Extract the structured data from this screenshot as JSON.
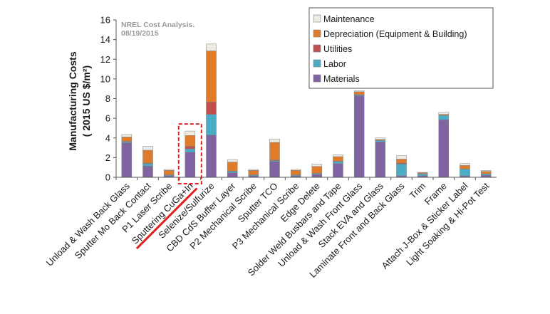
{
  "chart_data": {
    "type": "bar",
    "stacked": true,
    "title": "",
    "xlabel": "",
    "ylabel": "Manufacturing Costs ( 2015 US $/m²)",
    "ylabel_line1": "Manufacturing Costs",
    "ylabel_line2": "( 2015 US $/m²)",
    "ylim": [
      0,
      16
    ],
    "yticks": [
      "0",
      "2",
      "4",
      "6",
      "8",
      "10",
      "12",
      "14",
      "16"
    ],
    "grid": false,
    "legend_position": "top-right",
    "annotation": {
      "line1": "NREL Cost Analysis.",
      "line2": "08/19/2015"
    },
    "highlighted_category": "Sputtering CuGa+In",
    "categories": [
      "Unload & Wash Back Glass",
      "Sputter Mo Back Contact",
      "P1 Laser Scribe",
      "Sputtering CuGa+In",
      "Selenize/Sulfurize",
      "CBD CdS Buffer Layer",
      "P2 Mechanical Scribe",
      "Sputter TCO",
      "P3 Mechanical Scribe",
      "Edge Delete",
      "Solder Weld Busbars and Tape",
      "Unload & Wash Front Glass",
      "Stack EVA and Glass",
      "Laminate Front and Back Glass",
      "Trim",
      "Frame",
      "Attach J-Box & Sticker Label",
      "Light Soaking & Hi-Pot Test"
    ],
    "series": [
      {
        "name": "Materials",
        "color": "#8064a2",
        "values": [
          3.5,
          1.15,
          0.15,
          2.55,
          4.3,
          0.45,
          0.15,
          1.6,
          0.15,
          0.3,
          1.4,
          8.3,
          3.6,
          0.15,
          0.15,
          5.85,
          0.15,
          0.2
        ]
      },
      {
        "name": "Labor",
        "color": "#4bacc6",
        "values": [
          0.1,
          0.25,
          0.1,
          0.35,
          2.1,
          0.15,
          0.1,
          0.1,
          0.1,
          0.1,
          0.2,
          0.1,
          0.15,
          1.2,
          0.2,
          0.45,
          0.7,
          0.15
        ]
      },
      {
        "name": "Utilities",
        "color": "#c0504d",
        "values": [
          0.05,
          0.05,
          0.0,
          0.25,
          1.25,
          0.05,
          0.0,
          0.05,
          0.0,
          0.0,
          0.05,
          0.0,
          0.0,
          0.1,
          0.0,
          0.0,
          0.0,
          0.0
        ]
      },
      {
        "name": "Depreciation (Equipment & Building)",
        "color": "#e07b2a",
        "values": [
          0.45,
          1.3,
          0.45,
          1.1,
          5.2,
          0.9,
          0.45,
          1.8,
          0.45,
          0.7,
          0.45,
          0.3,
          0.1,
          0.4,
          0.1,
          0.1,
          0.35,
          0.25
        ]
      },
      {
        "name": "Maintenance",
        "color": "#eeece1",
        "values": [
          0.25,
          0.4,
          0.1,
          0.45,
          0.7,
          0.25,
          0.1,
          0.35,
          0.1,
          0.25,
          0.2,
          0.1,
          0.15,
          0.35,
          0.05,
          0.2,
          0.2,
          0.1
        ]
      }
    ],
    "legend_order": [
      "Maintenance",
      "Depreciation (Equipment & Building)",
      "Utilities",
      "Labor",
      "Materials"
    ]
  }
}
